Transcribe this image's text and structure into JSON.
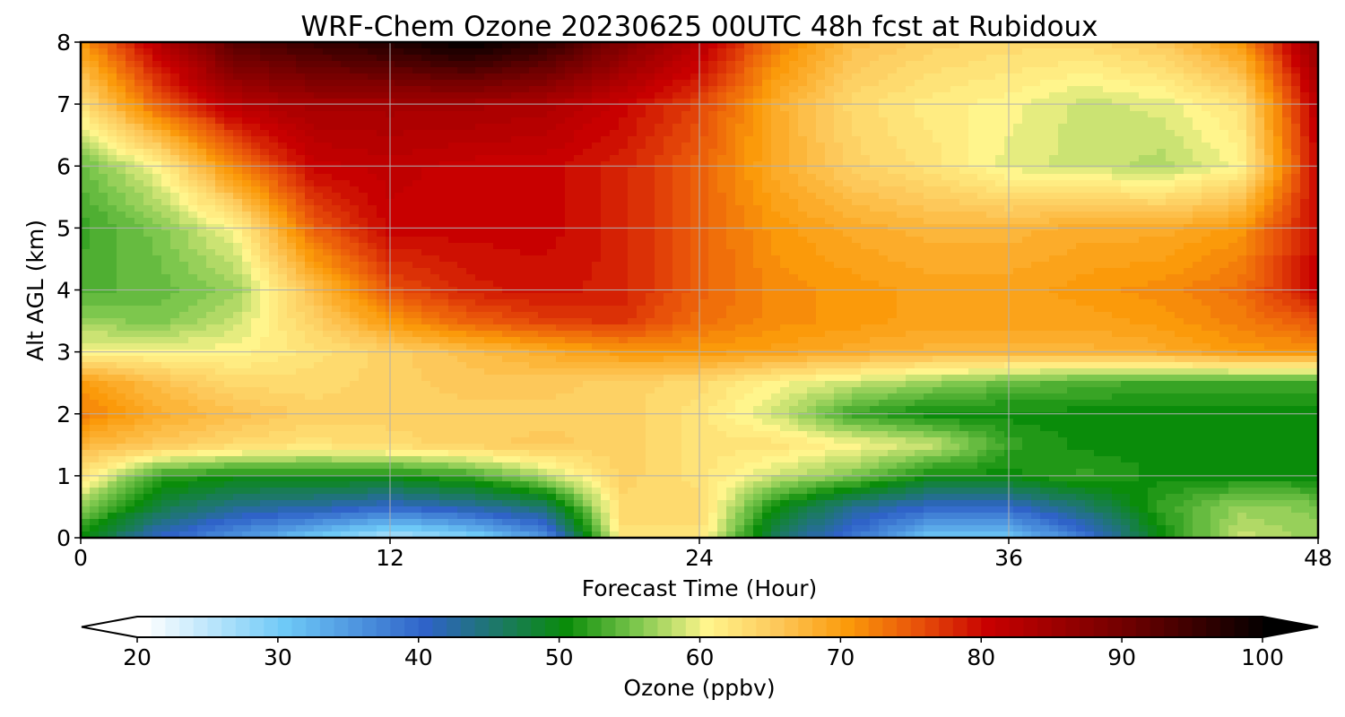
{
  "chart_data": {
    "type": "heatmap",
    "title": "WRF-Chem Ozone  20230625 00UTC 48h fcst at Rubidoux",
    "xlabel": "Forecast Time (Hour)",
    "ylabel": "Alt AGL (km)",
    "xlim": [
      0,
      48
    ],
    "ylim": [
      0,
      8
    ],
    "x_ticks": [
      0,
      12,
      24,
      36,
      48
    ],
    "y_ticks": [
      0,
      1,
      2,
      3,
      4,
      5,
      6,
      7,
      8
    ],
    "x_tick_labels": [
      "0",
      "12",
      "24",
      "36",
      "48"
    ],
    "y_tick_labels": [
      "0",
      "1",
      "2",
      "3",
      "4",
      "5",
      "6",
      "7",
      "8"
    ],
    "grid": true,
    "x": [
      0,
      3,
      6,
      9,
      12,
      15,
      18,
      21,
      24,
      27,
      30,
      33,
      36,
      39,
      42,
      45,
      48
    ],
    "y": [
      0,
      0.5,
      1,
      1.5,
      2,
      2.5,
      3,
      3.5,
      4,
      5,
      6,
      7,
      8
    ],
    "z": [
      [
        50,
        40,
        35,
        30,
        25,
        28,
        35,
        62,
        62,
        45,
        38,
        30,
        30,
        38,
        50,
        58,
        56
      ],
      [
        56,
        47,
        43,
        42,
        40,
        42,
        45,
        63,
        63,
        50,
        43,
        40,
        40,
        45,
        52,
        56,
        55
      ],
      [
        62,
        52,
        50,
        50,
        50,
        52,
        57,
        64,
        62,
        58,
        55,
        50,
        50,
        52,
        50,
        50,
        50
      ],
      [
        67,
        65,
        63,
        62,
        63,
        64,
        65,
        64,
        62,
        62,
        60,
        58,
        52,
        50,
        50,
        50,
        50
      ],
      [
        72,
        68,
        66,
        64,
        64,
        64,
        64,
        64,
        62,
        58,
        52,
        50,
        50,
        50,
        50,
        50,
        50
      ],
      [
        70,
        66,
        63,
        63,
        64,
        65,
        65,
        64,
        63,
        60,
        58,
        56,
        54,
        53,
        52,
        52,
        52
      ],
      [
        60,
        60,
        60,
        62,
        64,
        66,
        68,
        70,
        70,
        69,
        68,
        67,
        67,
        67,
        68,
        70,
        70
      ],
      [
        56,
        55,
        58,
        64,
        70,
        74,
        76,
        77,
        73,
        71,
        70,
        69,
        69,
        69,
        70,
        72,
        75
      ],
      [
        53,
        54,
        56,
        66,
        75,
        78,
        79,
        78,
        74,
        71,
        70,
        69,
        69,
        70,
        71,
        73,
        80
      ],
      [
        52,
        55,
        60,
        74,
        80,
        80,
        80,
        78,
        74,
        70,
        68,
        67,
        67,
        68,
        68,
        70,
        80
      ],
      [
        54,
        60,
        72,
        80,
        81,
        80,
        80,
        78,
        74,
        68,
        64,
        62,
        59,
        58,
        57,
        60,
        80
      ],
      [
        62,
        74,
        82,
        84,
        84,
        84,
        83,
        80,
        76,
        68,
        63,
        61,
        60,
        58,
        59,
        62,
        82
      ],
      [
        70,
        82,
        92,
        95,
        97,
        100,
        96,
        88,
        82,
        72,
        66,
        64,
        63,
        63,
        65,
        70,
        86
      ]
    ],
    "colorbar": {
      "label": "Ozone  (ppbv)",
      "min": 20,
      "max": 100,
      "ticks": [
        20,
        30,
        40,
        50,
        60,
        70,
        80,
        90,
        100
      ],
      "tick_labels": [
        "20",
        "30",
        "40",
        "50",
        "60",
        "70",
        "80",
        "90",
        "100"
      ],
      "extend": "both",
      "stops": [
        {
          "v": 20,
          "c": "#ffffff"
        },
        {
          "v": 30,
          "c": "#6ec9f7"
        },
        {
          "v": 40,
          "c": "#2f63c8"
        },
        {
          "v": 50,
          "c": "#0a8c0a"
        },
        {
          "v": 55,
          "c": "#7dc74d"
        },
        {
          "v": 60,
          "c": "#fff58c"
        },
        {
          "v": 65,
          "c": "#fdc85a"
        },
        {
          "v": 70,
          "c": "#fb9a0a"
        },
        {
          "v": 75,
          "c": "#e8520a"
        },
        {
          "v": 80,
          "c": "#c80000"
        },
        {
          "v": 90,
          "c": "#6e0000"
        },
        {
          "v": 100,
          "c": "#000000"
        }
      ]
    }
  }
}
